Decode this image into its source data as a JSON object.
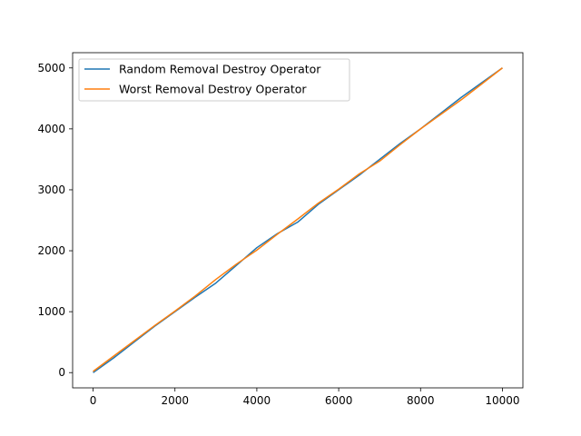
{
  "chart_data": {
    "type": "line",
    "title": "",
    "xlabel": "",
    "ylabel": "",
    "xlim": [
      -500,
      10500
    ],
    "ylim": [
      -250,
      5250
    ],
    "xticks": [
      0,
      2000,
      4000,
      6000,
      8000,
      10000
    ],
    "yticks": [
      0,
      1000,
      2000,
      3000,
      4000,
      5000
    ],
    "xtick_labels": [
      "0",
      "2000",
      "4000",
      "6000",
      "8000",
      "10000"
    ],
    "ytick_labels": [
      "0",
      "1000",
      "2000",
      "3000",
      "4000",
      "5000"
    ],
    "grid": false,
    "legend_position": "upper-left",
    "series": [
      {
        "name": "Random Removal Destroy Operator",
        "color": "#1f77b4",
        "x": [
          0,
          500,
          1000,
          1500,
          2000,
          2500,
          3000,
          3500,
          4000,
          4500,
          5000,
          5500,
          6000,
          6500,
          7000,
          7500,
          8000,
          8500,
          9000,
          9500,
          10000
        ],
        "y": [
          0,
          240,
          500,
          760,
          1000,
          1240,
          1470,
          1760,
          2050,
          2280,
          2470,
          2760,
          3000,
          3240,
          3500,
          3760,
          4000,
          4260,
          4520,
          4760,
          5000
        ]
      },
      {
        "name": "Worst Removal Destroy Operator",
        "color": "#ff7f0e",
        "x": [
          0,
          500,
          1000,
          1500,
          2000,
          2500,
          3000,
          3500,
          4000,
          4500,
          5000,
          5500,
          6000,
          6500,
          7000,
          7500,
          8000,
          8500,
          9000,
          9500,
          10000
        ],
        "y": [
          20,
          270,
          520,
          770,
          1010,
          1260,
          1530,
          1780,
          2010,
          2270,
          2520,
          2780,
          3010,
          3260,
          3470,
          3740,
          4000,
          4240,
          4480,
          4740,
          5000
        ]
      }
    ]
  }
}
